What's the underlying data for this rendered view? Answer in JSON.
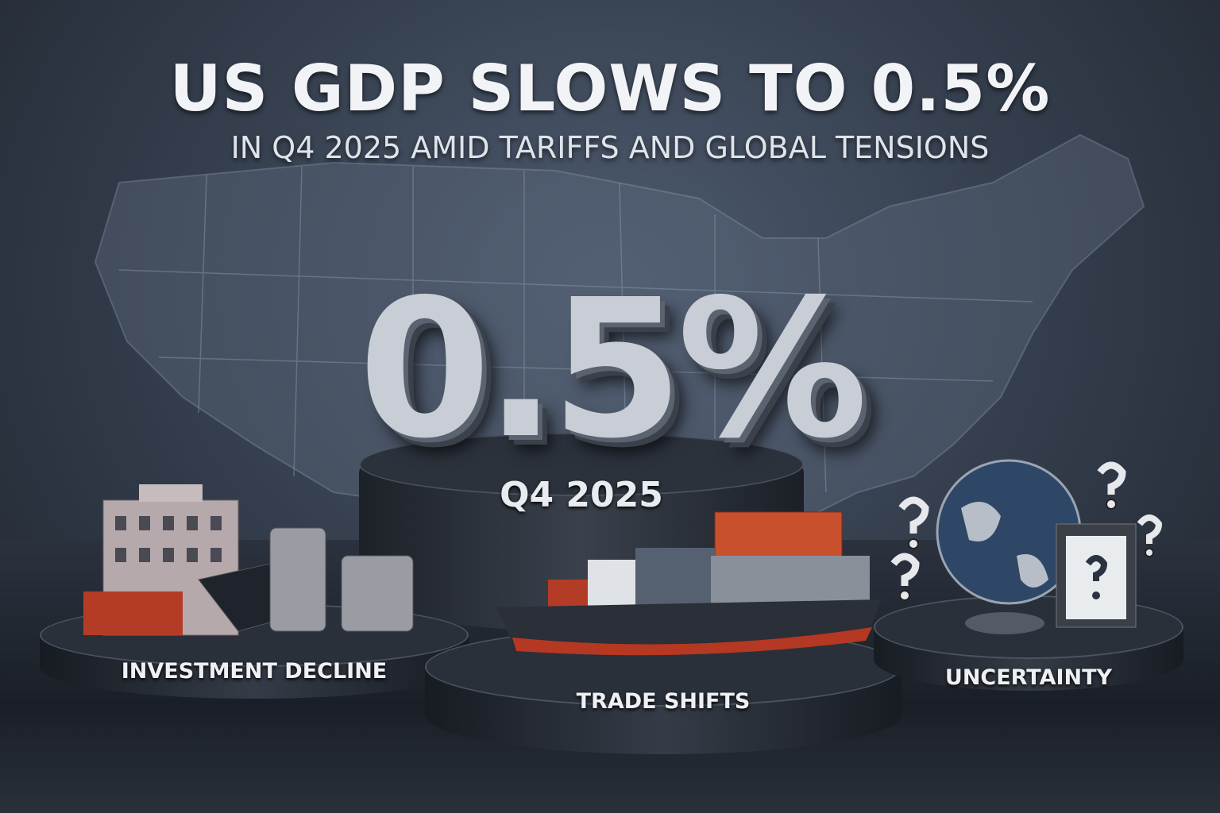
{
  "headline": "US GDP SLOWS TO 0.5%",
  "subheadline": "IN Q4 2025 AMID TARIFFS AND GLOBAL TENSIONS",
  "center": {
    "value": "0.5%",
    "period": "Q4 2025"
  },
  "pillars": [
    {
      "label": "INVESTMENT DECLINE",
      "icon": "building-coins-icon"
    },
    {
      "label": "TRADE SHIFTS",
      "icon": "cargo-ship-icon"
    },
    {
      "label": "UNCERTAINTY",
      "icon": "globe-question-icon"
    }
  ],
  "colors": {
    "background": "#36404f",
    "container": "#c8502c",
    "text": "#f1f3f6"
  }
}
